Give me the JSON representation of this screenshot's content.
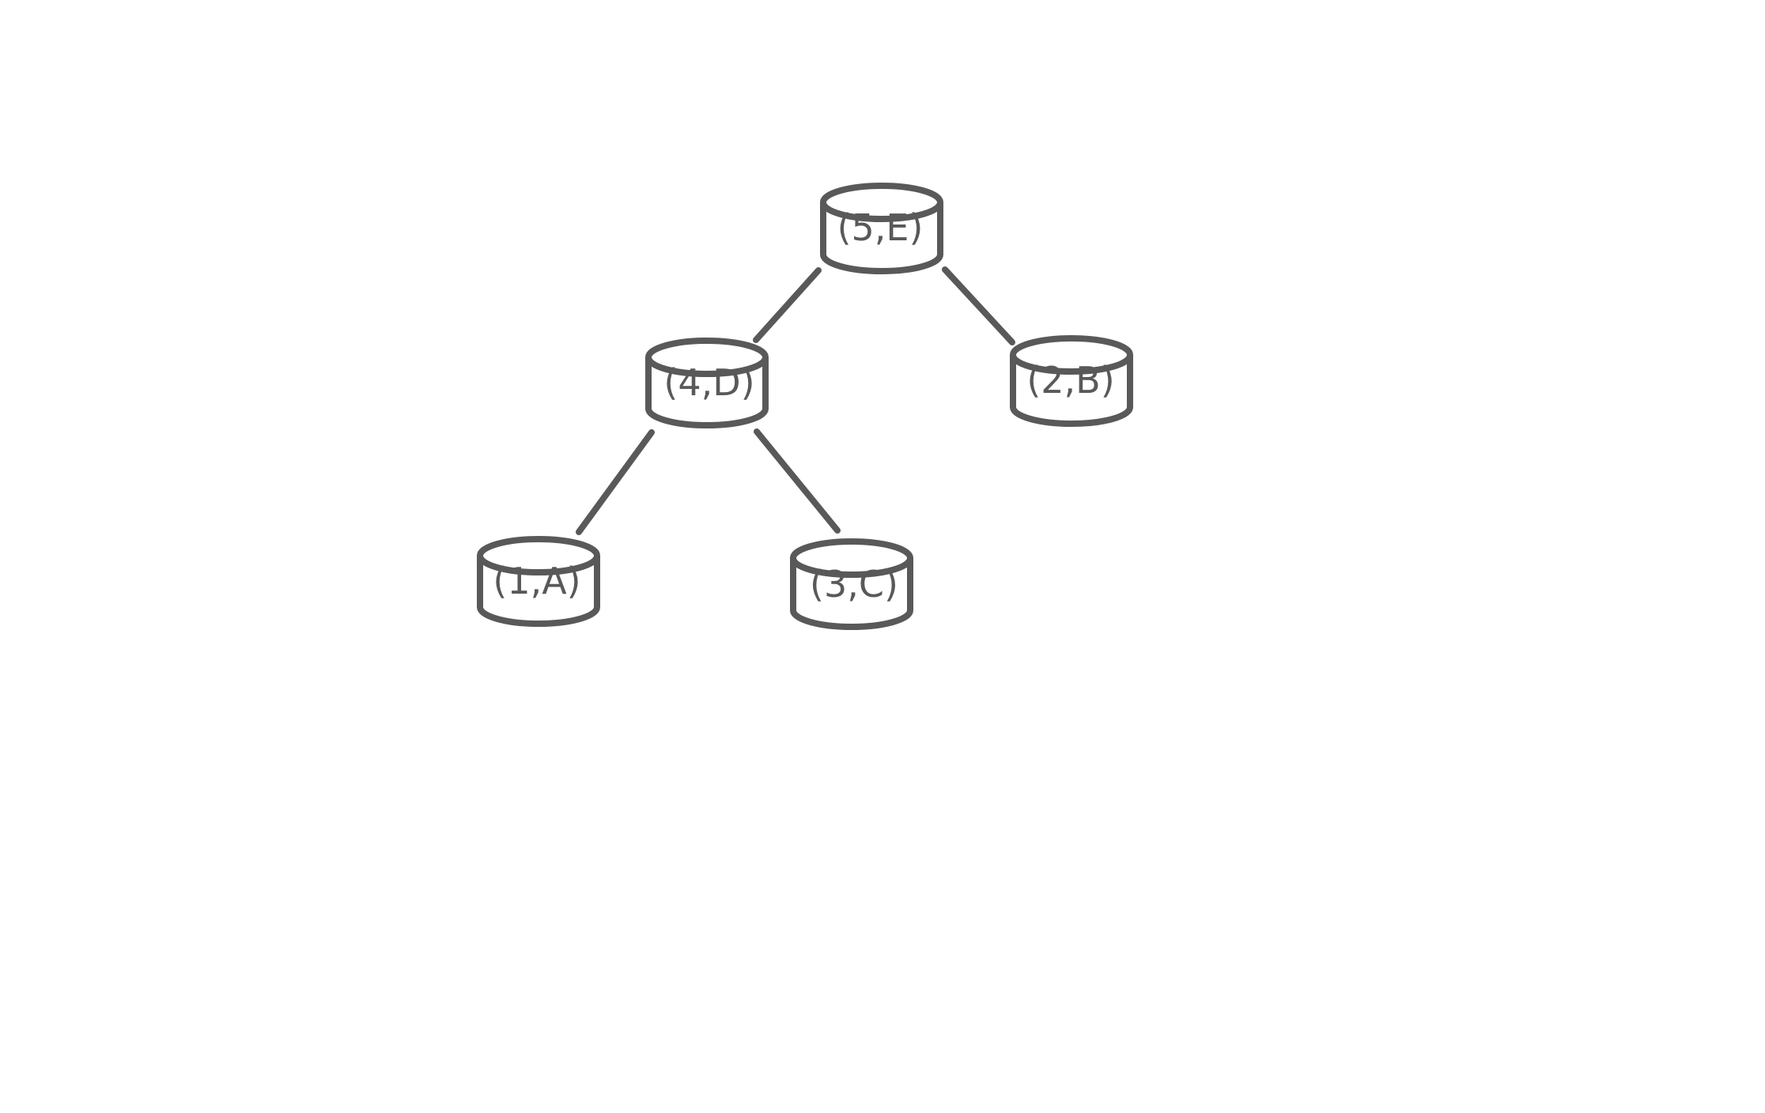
{
  "nodes": [
    {
      "id": "E",
      "label": "(5,E)"
    },
    {
      "id": "D",
      "label": "(4,D)"
    },
    {
      "id": "B",
      "label": "(2,B)"
    },
    {
      "id": "A",
      "label": "(1,A)"
    },
    {
      "id": "C",
      "label": "(3,C)"
    }
  ],
  "edges": [
    {
      "from": "E",
      "to": "D"
    },
    {
      "from": "E",
      "to": "B"
    },
    {
      "from": "D",
      "to": "A"
    },
    {
      "from": "D",
      "to": "C"
    }
  ]
}
